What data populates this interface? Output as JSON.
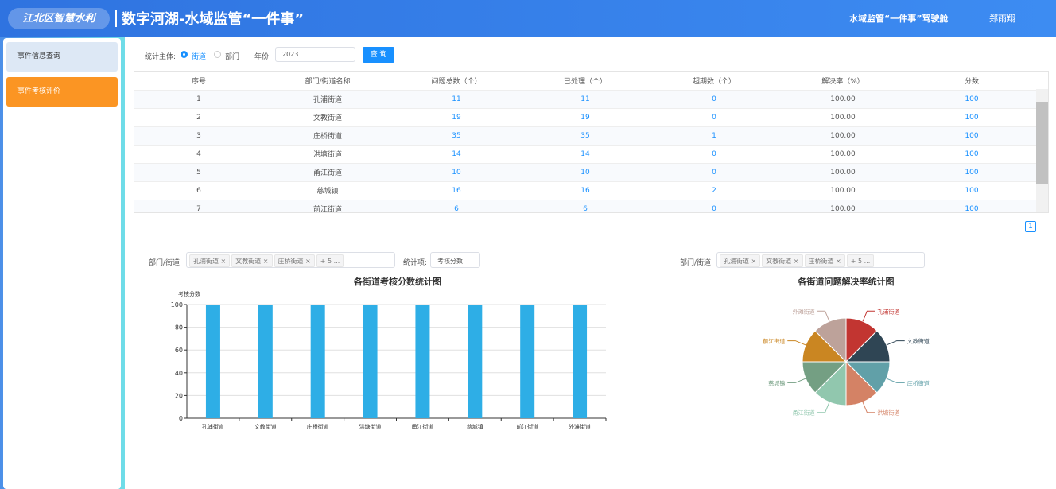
{
  "header": {
    "logo": "江北区智慧水利",
    "title": "数字河湖-水域监管“一件事”",
    "nav": "水域监管“一件事”驾驶舱",
    "user": "郑雨翔"
  },
  "sidebar": {
    "items": [
      "事件信息查询",
      "事件考核评价"
    ]
  },
  "filter": {
    "subject_label": "统计主体:",
    "options": [
      "街道",
      "部门"
    ],
    "year_label": "年份:",
    "year": "2023",
    "button": "查 询"
  },
  "table": {
    "headers": [
      "序号",
      "部门/街道名称",
      "问题总数（个）",
      "已处理（个）",
      "超期数（个）",
      "解决率（%）",
      "分数"
    ],
    "rows": [
      [
        "1",
        "孔浦街道",
        "11",
        "11",
        "0",
        "100.00",
        "100"
      ],
      [
        "2",
        "文教街道",
        "19",
        "19",
        "0",
        "100.00",
        "100"
      ],
      [
        "3",
        "庄桥街道",
        "35",
        "35",
        "1",
        "100.00",
        "100"
      ],
      [
        "4",
        "洪塘街道",
        "14",
        "14",
        "0",
        "100.00",
        "100"
      ],
      [
        "5",
        "甬江街道",
        "10",
        "10",
        "0",
        "100.00",
        "100"
      ],
      [
        "6",
        "慈城镇",
        "16",
        "16",
        "2",
        "100.00",
        "100"
      ],
      [
        "7",
        "前江街道",
        "6",
        "6",
        "0",
        "100.00",
        "100"
      ]
    ]
  },
  "pagination": {
    "page": "1"
  },
  "chart_filters": {
    "left": {
      "label": "部门/街道:",
      "tags": [
        "孔浦街道",
        "文教街道",
        "庄桥街道"
      ],
      "more": "+ 5 ...",
      "item_label": "统计项:",
      "item": "考核分数"
    },
    "right": {
      "label": "部门/街道:",
      "tags": [
        "孔浦街道",
        "文教街道",
        "庄桥街道"
      ],
      "more": "+ 5 ..."
    }
  },
  "chart_data": [
    {
      "type": "bar",
      "title": "各街道考核分数统计图",
      "y_label": "考核分数",
      "categories": [
        "孔浦街道",
        "文教街道",
        "庄桥街道",
        "洪塘街道",
        "甬江街道",
        "慈城镇",
        "前江街道",
        "外滩街道"
      ],
      "values": [
        100,
        100,
        100,
        100,
        100,
        100,
        100,
        100
      ],
      "color": "#2eaee6",
      "ylim": [
        0,
        100
      ],
      "yticks": [
        0,
        20,
        40,
        60,
        80,
        100
      ],
      "grid": true
    },
    {
      "type": "pie",
      "title": "各街道问题解决率统计图",
      "categories": [
        "孔浦街道",
        "文教街道",
        "庄桥街道",
        "洪塘街道",
        "甬江街道",
        "慈城镇",
        "前江街道",
        "外滩街道"
      ],
      "values": [
        100,
        100,
        100,
        100,
        100,
        100,
        100,
        100
      ],
      "colors": [
        "#c23531",
        "#2f4554",
        "#61a0a8",
        "#d48265",
        "#91c7ae",
        "#749f83",
        "#ca8622",
        "#bda29a"
      ]
    }
  ]
}
